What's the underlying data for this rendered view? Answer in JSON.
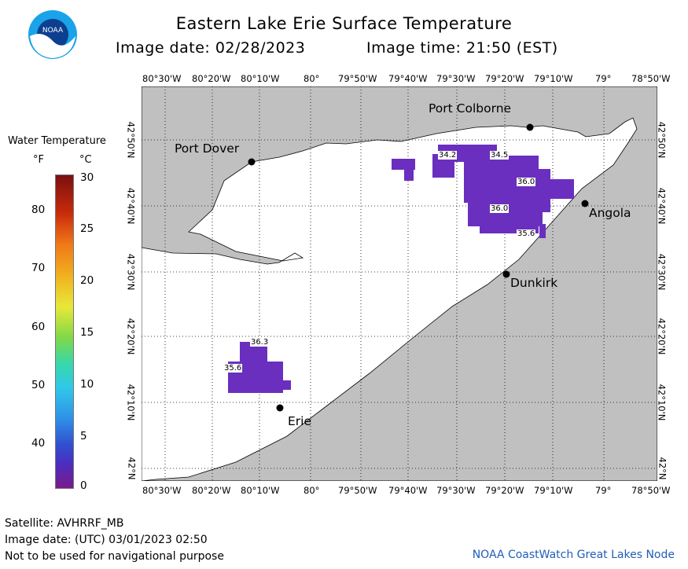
{
  "header": {
    "title": "Eastern Lake Erie Surface Temperature",
    "image_date": "Image date: 02/28/2023",
    "image_time": "Image time: 21:50 (EST)"
  },
  "logo": {
    "text": "NOAA"
  },
  "legend": {
    "title": "Water Temperature",
    "unit_f": "°F",
    "unit_c": "°C",
    "f_ticks": [
      "80",
      "70",
      "60",
      "50",
      "40"
    ],
    "c_ticks": [
      "30",
      "25",
      "20",
      "15",
      "10",
      "5",
      "0"
    ]
  },
  "map": {
    "lon_labels": [
      "80°30'W",
      "80°20'W",
      "80°10'W",
      "80°",
      "79°50'W",
      "79°40'W",
      "79°30'W",
      "79°20'W",
      "79°10'W",
      "79°",
      "78°50'W"
    ],
    "lat_labels": [
      "42°50'N",
      "42°40'N",
      "42°30'N",
      "42°20'N",
      "42°10'N",
      "42°N"
    ],
    "places": [
      {
        "name": "Port Colborne"
      },
      {
        "name": "Port Dover"
      },
      {
        "name": "Angola"
      },
      {
        "name": "Dunkirk"
      },
      {
        "name": "Erie"
      }
    ],
    "temp_labels": [
      "34.2",
      "34.5",
      "36.0",
      "36.0",
      "35.6",
      "36.3",
      "35.6"
    ]
  },
  "footer": {
    "satellite": "Satellite: AVHRRF_MB",
    "utc_date": "Image date: (UTC) 03/01/2023  02:50",
    "warning": "Not to be used for navigational purpose",
    "credit": "NOAA CoastWatch Great Lakes Node"
  },
  "colors": {
    "land": "#c0c0c0",
    "water": "#ffffff",
    "ice_patch": "#6a2fbf",
    "credit": "#1f5fb8",
    "logo_blue": "#1aa3e8"
  }
}
